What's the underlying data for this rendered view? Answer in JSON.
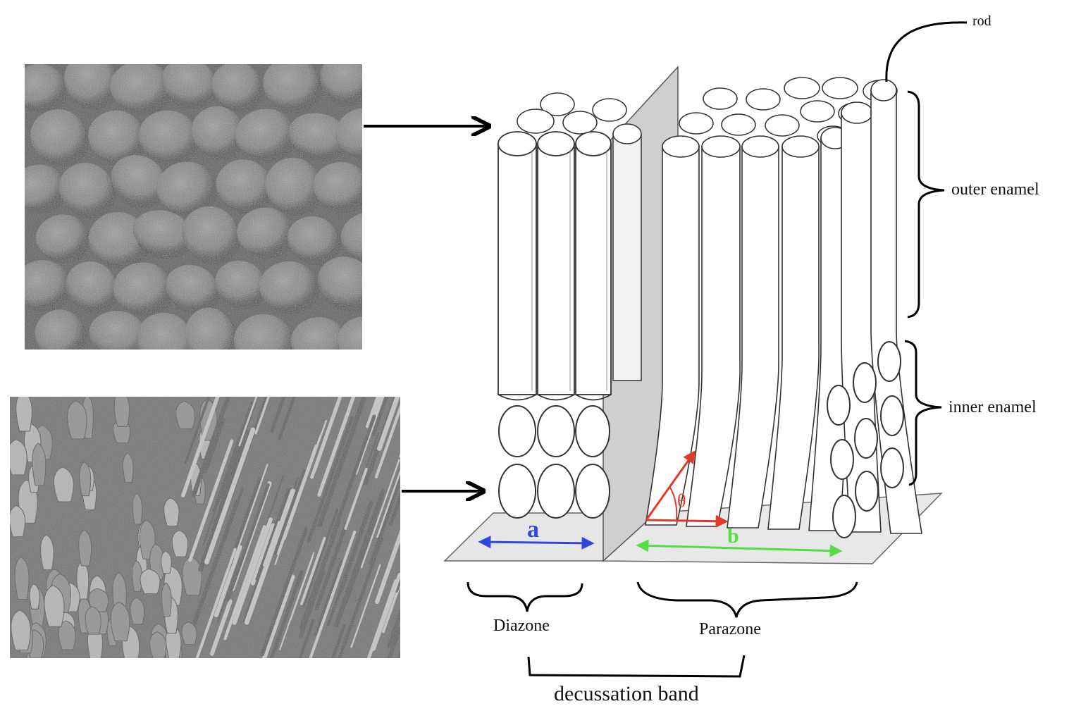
{
  "labels": {
    "rod": "rod",
    "outer_enamel": "outer enamel",
    "inner_enamel": "inner enamel",
    "diazone": "Diazone",
    "parazone": "Parazone",
    "decussation_band": "decussation band",
    "a": "a",
    "b": "b",
    "theta": "θ"
  },
  "colors": {
    "a_arrow": "#3344e0",
    "b_arrow": "#55dd44",
    "theta_arrows": "#e03a2a",
    "divider_plate": "#cfcfcf",
    "base_plate": "#e6e6e6",
    "rod_fill": "#ffffff",
    "rod_outline": "#333333"
  },
  "images": {
    "top_micrograph": "SEM micrograph of enamel rods in cross-section (outer enamel)",
    "bottom_micrograph": "SEM micrograph of decussating enamel rods (inner enamel)"
  }
}
